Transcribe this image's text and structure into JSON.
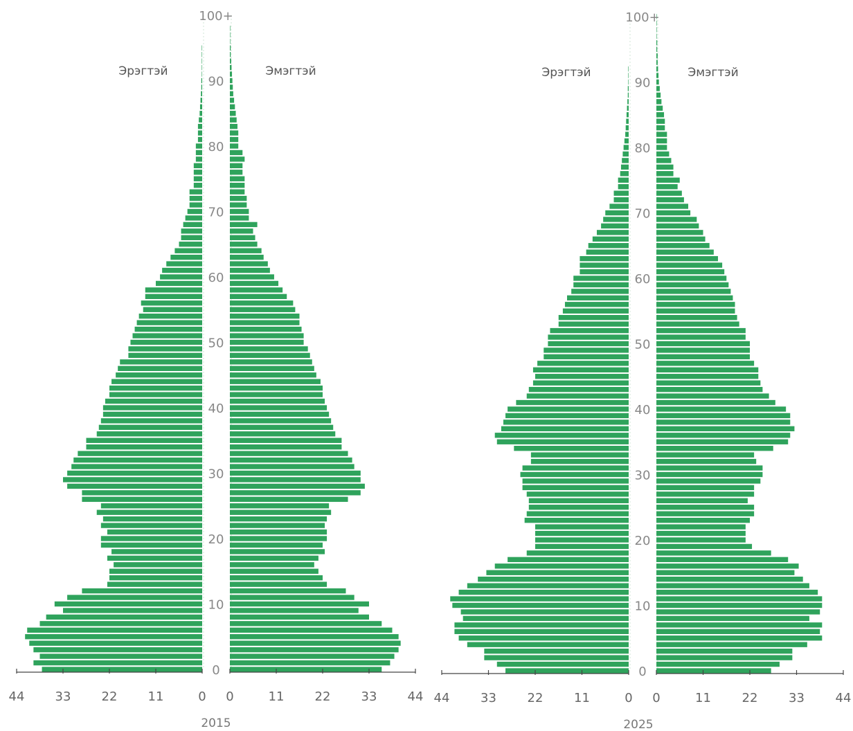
{
  "chart_data": [
    {
      "type": "bar",
      "year": "2015",
      "left_label": "Эрэгтэй",
      "right_label": "Эмэгтэй",
      "x_ticks_left": [
        "44",
        "33",
        "22",
        "11",
        "0"
      ],
      "x_ticks_right": [
        "0",
        "11",
        "22",
        "33",
        "44"
      ],
      "y_ticks": [
        "0",
        "10",
        "20",
        "30",
        "40",
        "50",
        "60",
        "70",
        "80",
        "90",
        "100+"
      ],
      "xlim": [
        0,
        44
      ],
      "ages": [
        0,
        1,
        2,
        3,
        4,
        5,
        6,
        7,
        8,
        9,
        10,
        11,
        12,
        13,
        14,
        15,
        16,
        17,
        18,
        19,
        20,
        21,
        22,
        23,
        24,
        25,
        26,
        27,
        28,
        29,
        30,
        31,
        32,
        33,
        34,
        35,
        36,
        37,
        38,
        39,
        40,
        41,
        42,
        43,
        44,
        45,
        46,
        47,
        48,
        49,
        50,
        51,
        52,
        53,
        54,
        55,
        56,
        57,
        58,
        59,
        60,
        61,
        62,
        63,
        64,
        65,
        66,
        67,
        68,
        69,
        70,
        71,
        72,
        73,
        74,
        75,
        76,
        77,
        78,
        79,
        80,
        81,
        82,
        83,
        84,
        85,
        86,
        87,
        88,
        89,
        90,
        91,
        92,
        93,
        94,
        95,
        96,
        97,
        98,
        99,
        100
      ],
      "series": [
        {
          "name": "Эрэгтэй",
          "values": [
            38.0,
            40.0,
            38.5,
            40.0,
            41.0,
            42.0,
            41.5,
            38.5,
            37.0,
            33.0,
            35.0,
            32.0,
            28.5,
            22.5,
            22.0,
            22.0,
            21.0,
            22.5,
            21.5,
            24.0,
            24.0,
            22.5,
            24.0,
            23.5,
            25.0,
            24.0,
            28.5,
            28.5,
            32.0,
            33.0,
            32.0,
            31.0,
            30.5,
            29.5,
            27.5,
            27.5,
            25.0,
            24.5,
            24.0,
            23.5,
            23.5,
            23.0,
            22.0,
            22.0,
            21.5,
            20.5,
            20.0,
            19.5,
            17.5,
            17.5,
            17.0,
            16.5,
            16.0,
            15.5,
            15.0,
            14.0,
            14.5,
            13.5,
            13.5,
            11.0,
            10.0,
            9.5,
            8.5,
            7.5,
            6.5,
            5.5,
            5.0,
            5.0,
            4.5,
            4.0,
            3.5,
            3.0,
            3.0,
            3.0,
            2.0,
            2.0,
            2.0,
            2.0,
            1.5,
            1.5,
            1.5,
            1.0,
            1.0,
            1.0,
            0.8,
            0.6,
            0.5,
            0.4,
            0.3,
            0.2,
            0.2,
            0.1,
            0.1,
            0.1,
            0.1,
            0.1,
            0.0,
            0.0,
            0.0,
            0.0,
            0.0
          ]
        },
        {
          "name": "Эмэгтэй",
          "values": [
            36.0,
            38.0,
            39.0,
            40.0,
            40.5,
            40.0,
            38.5,
            36.0,
            33.0,
            30.5,
            33.0,
            29.5,
            27.5,
            23.0,
            22.0,
            21.0,
            20.0,
            21.0,
            22.5,
            22.0,
            23.0,
            23.0,
            22.5,
            23.0,
            24.0,
            23.5,
            28.0,
            31.0,
            32.0,
            31.0,
            31.0,
            29.5,
            29.0,
            28.0,
            26.5,
            26.5,
            25.0,
            24.5,
            24.0,
            23.5,
            23.0,
            22.5,
            22.0,
            22.0,
            21.5,
            20.5,
            20.0,
            19.5,
            19.0,
            18.5,
            17.5,
            17.5,
            17.0,
            16.5,
            16.5,
            15.5,
            15.0,
            13.5,
            12.5,
            11.5,
            10.5,
            9.5,
            9.0,
            8.0,
            7.5,
            6.5,
            6.0,
            5.5,
            6.5,
            4.5,
            4.5,
            4.0,
            4.0,
            3.5,
            3.5,
            3.5,
            3.0,
            3.0,
            3.5,
            3.0,
            2.0,
            2.0,
            2.0,
            1.8,
            1.6,
            1.4,
            1.2,
            1.0,
            0.8,
            0.7,
            0.6,
            0.5,
            0.4,
            0.3,
            0.2,
            0.2,
            0.1,
            0.1,
            0.1,
            0.0,
            0.0
          ]
        }
      ]
    },
    {
      "type": "bar",
      "year": "2025",
      "left_label": "Эрэгтэй",
      "right_label": "Эмэгтэй",
      "x_ticks_left": [
        "44",
        "33",
        "22",
        "11",
        "0"
      ],
      "x_ticks_right": [
        "0",
        "11",
        "22",
        "33",
        "44"
      ],
      "y_ticks": [
        "0",
        "10",
        "20",
        "30",
        "40",
        "50",
        "60",
        "70",
        "80",
        "90",
        "100+"
      ],
      "xlim": [
        0,
        44
      ],
      "ages": [
        0,
        1,
        2,
        3,
        4,
        5,
        6,
        7,
        8,
        9,
        10,
        11,
        12,
        13,
        14,
        15,
        16,
        17,
        18,
        19,
        20,
        21,
        22,
        23,
        24,
        25,
        26,
        27,
        28,
        29,
        30,
        31,
        32,
        33,
        34,
        35,
        36,
        37,
        38,
        39,
        40,
        41,
        42,
        43,
        44,
        45,
        46,
        47,
        48,
        49,
        50,
        51,
        52,
        53,
        54,
        55,
        56,
        57,
        58,
        59,
        60,
        61,
        62,
        63,
        64,
        65,
        66,
        67,
        68,
        69,
        70,
        71,
        72,
        73,
        74,
        75,
        76,
        77,
        78,
        79,
        80,
        81,
        82,
        83,
        84,
        85,
        86,
        87,
        88,
        89,
        90,
        91,
        92,
        93,
        94,
        95,
        96,
        97,
        98,
        99,
        100
      ],
      "series": [
        {
          "name": "Эрэгтэй",
          "values": [
            29.0,
            31.0,
            34.0,
            34.0,
            38.0,
            40.0,
            41.0,
            41.0,
            39.0,
            39.5,
            41.5,
            42.0,
            40.0,
            38.0,
            35.5,
            33.5,
            31.5,
            28.5,
            24.0,
            22.0,
            22.0,
            22.0,
            22.0,
            24.5,
            24.0,
            23.5,
            23.5,
            24.0,
            25.0,
            25.0,
            25.5,
            25.0,
            23.0,
            23.0,
            27.0,
            31.0,
            31.5,
            30.0,
            29.5,
            29.0,
            28.5,
            26.5,
            24.0,
            23.5,
            22.5,
            22.0,
            22.5,
            21.5,
            20.0,
            20.0,
            19.0,
            19.0,
            18.5,
            16.5,
            16.5,
            15.5,
            15.0,
            14.5,
            13.5,
            13.0,
            13.0,
            11.5,
            11.5,
            11.5,
            10.0,
            9.5,
            8.5,
            7.5,
            6.5,
            6.0,
            5.5,
            4.5,
            3.5,
            3.5,
            2.5,
            2.5,
            2.0,
            1.8,
            1.6,
            1.4,
            1.2,
            1.0,
            0.8,
            0.7,
            0.6,
            0.5,
            0.4,
            0.3,
            0.2,
            0.2,
            0.1,
            0.1,
            0.1,
            0.0,
            0.0,
            0.0,
            0.0,
            0.0,
            0.0,
            0.0,
            0.0
          ]
        },
        {
          "name": "Эмэгтэй",
          "values": [
            27.0,
            29.0,
            32.0,
            32.0,
            35.5,
            39.0,
            38.5,
            39.0,
            36.0,
            38.5,
            39.0,
            39.0,
            38.0,
            36.0,
            34.5,
            32.5,
            33.5,
            31.0,
            27.0,
            22.5,
            21.0,
            21.0,
            21.0,
            22.0,
            23.0,
            23.0,
            21.5,
            23.0,
            23.0,
            24.5,
            25.0,
            25.0,
            23.5,
            23.0,
            27.5,
            31.0,
            31.5,
            32.5,
            31.5,
            31.5,
            30.5,
            28.0,
            26.5,
            25.0,
            24.5,
            24.0,
            24.0,
            23.0,
            22.0,
            22.0,
            22.0,
            21.0,
            21.0,
            19.5,
            19.0,
            18.5,
            18.5,
            18.0,
            17.5,
            17.0,
            16.5,
            16.0,
            15.5,
            14.5,
            13.5,
            12.5,
            11.5,
            11.0,
            10.0,
            9.5,
            8.0,
            7.5,
            6.5,
            6.0,
            5.0,
            5.5,
            4.0,
            4.0,
            3.5,
            3.0,
            2.5,
            2.5,
            2.5,
            2.0,
            2.0,
            1.8,
            1.5,
            1.2,
            1.0,
            0.8,
            0.6,
            0.5,
            0.4,
            0.3,
            0.3,
            0.2,
            0.2,
            0.1,
            0.1,
            0.1,
            0.1
          ]
        }
      ]
    }
  ]
}
